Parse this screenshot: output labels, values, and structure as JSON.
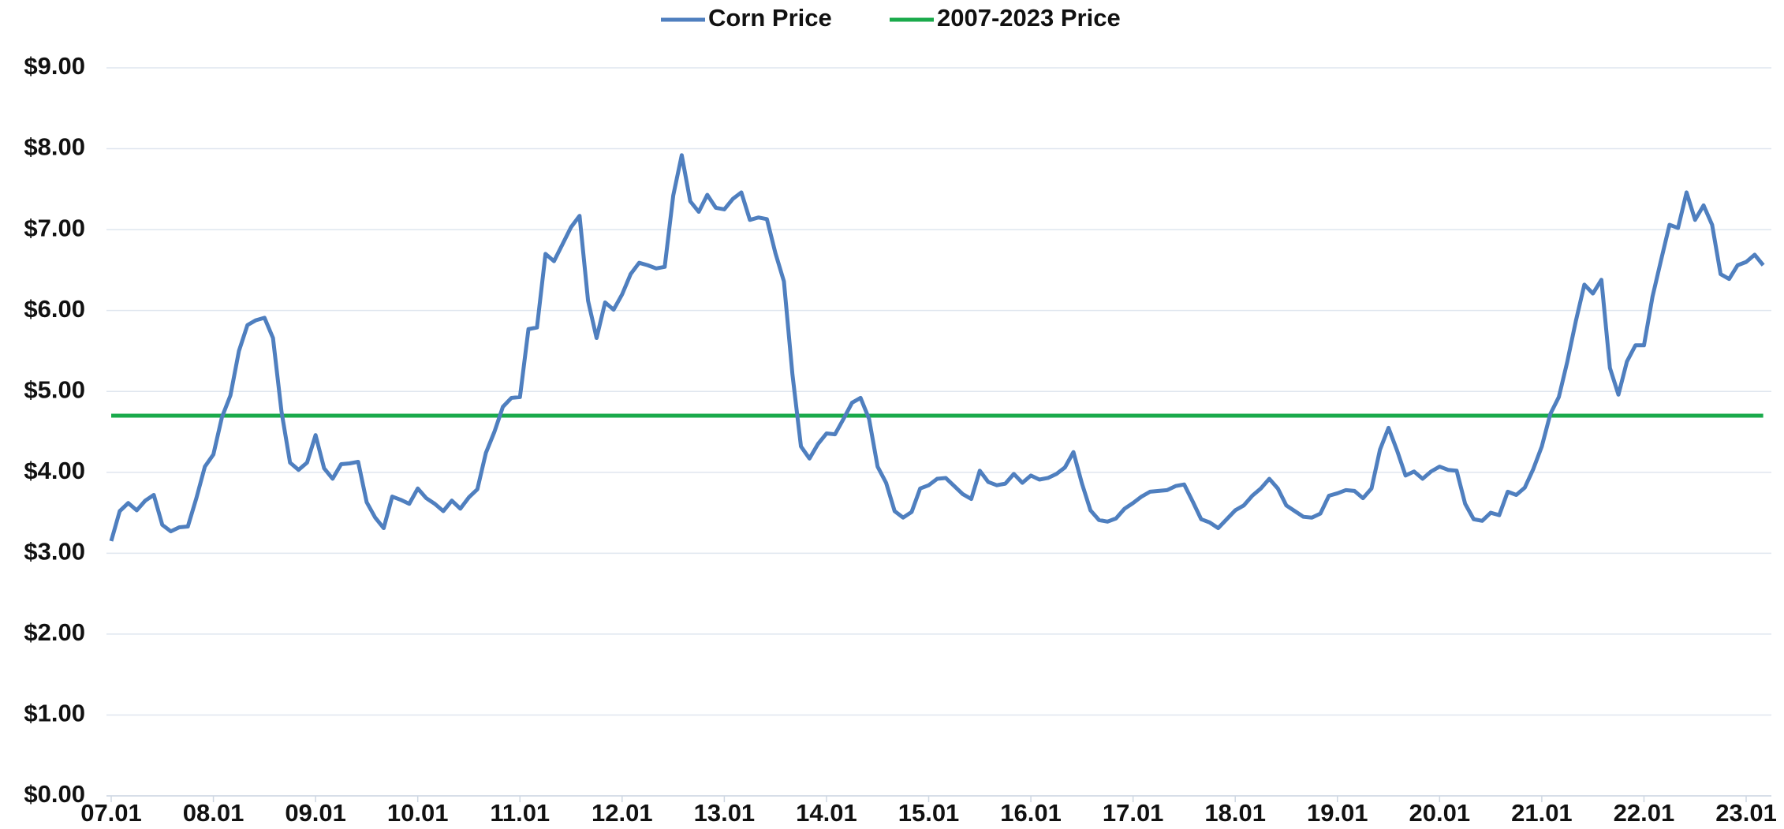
{
  "chart_data": {
    "type": "line",
    "categories": [
      "07.01",
      null,
      null,
      null,
      null,
      null,
      null,
      null,
      null,
      null,
      null,
      null,
      "08.01",
      null,
      null,
      null,
      null,
      null,
      null,
      null,
      null,
      null,
      null,
      null,
      "09.01",
      null,
      null,
      null,
      null,
      null,
      null,
      null,
      null,
      null,
      null,
      null,
      "10.01",
      null,
      null,
      null,
      null,
      null,
      null,
      null,
      null,
      null,
      null,
      null,
      "11.01",
      null,
      null,
      null,
      null,
      null,
      null,
      null,
      null,
      null,
      null,
      null,
      "12.01",
      null,
      null,
      null,
      null,
      null,
      null,
      null,
      null,
      null,
      null,
      null,
      "13.01",
      null,
      null,
      null,
      null,
      null,
      null,
      null,
      null,
      null,
      null,
      null,
      "14.01",
      null,
      null,
      null,
      null,
      null,
      null,
      null,
      null,
      null,
      null,
      null,
      "15.01",
      null,
      null,
      null,
      null,
      null,
      null,
      null,
      null,
      null,
      null,
      null,
      "16.01",
      null,
      null,
      null,
      null,
      null,
      null,
      null,
      null,
      null,
      null,
      null,
      "17.01",
      null,
      null,
      null,
      null,
      null,
      null,
      null,
      null,
      null,
      null,
      null,
      "18.01",
      null,
      null,
      null,
      null,
      null,
      null,
      null,
      null,
      null,
      null,
      null,
      "19.01",
      null,
      null,
      null,
      null,
      null,
      null,
      null,
      null,
      null,
      null,
      null,
      "20.01",
      null,
      null,
      null,
      null,
      null,
      null,
      null,
      null,
      null,
      null,
      null,
      "21.01",
      null,
      null,
      null,
      null,
      null,
      null,
      null,
      null,
      null,
      null,
      null,
      "22.01",
      null,
      null,
      null,
      null,
      null,
      null,
      null,
      null,
      null,
      null,
      null,
      "23.01",
      null,
      null
    ],
    "series": [
      {
        "name": "Corn Price",
        "color": "#4f7fbf",
        "values": [
          3.15,
          3.52,
          3.62,
          3.53,
          3.65,
          3.72,
          3.35,
          3.27,
          3.32,
          3.33,
          3.68,
          4.07,
          4.22,
          4.68,
          4.95,
          5.5,
          5.82,
          5.88,
          5.91,
          5.66,
          4.75,
          4.12,
          4.03,
          4.12,
          4.46,
          4.05,
          3.92,
          4.1,
          4.11,
          4.13,
          3.63,
          3.44,
          3.31,
          3.7,
          3.66,
          3.61,
          3.8,
          3.68,
          3.61,
          3.52,
          3.65,
          3.55,
          3.69,
          3.79,
          4.24,
          4.5,
          4.81,
          4.92,
          4.93,
          5.77,
          5.79,
          6.7,
          6.61,
          6.82,
          7.03,
          7.17,
          6.12,
          5.66,
          6.1,
          6.01,
          6.2,
          6.45,
          6.59,
          6.56,
          6.52,
          6.54,
          7.42,
          7.92,
          7.35,
          7.22,
          7.43,
          7.27,
          7.25,
          7.38,
          7.46,
          7.12,
          7.15,
          7.13,
          6.71,
          6.36,
          5.21,
          4.32,
          4.17,
          4.35,
          4.48,
          4.47,
          4.66,
          4.86,
          4.92,
          4.66,
          4.07,
          3.87,
          3.52,
          3.44,
          3.51,
          3.8,
          3.84,
          3.92,
          3.93,
          3.83,
          3.73,
          3.67,
          4.02,
          3.88,
          3.84,
          3.86,
          3.98,
          3.87,
          3.96,
          3.91,
          3.93,
          3.98,
          4.06,
          4.25,
          3.86,
          3.53,
          3.41,
          3.39,
          3.43,
          3.55,
          3.62,
          3.7,
          3.76,
          3.77,
          3.78,
          3.83,
          3.85,
          3.64,
          3.42,
          3.38,
          3.31,
          3.42,
          3.53,
          3.59,
          3.71,
          3.8,
          3.92,
          3.8,
          3.59,
          3.52,
          3.45,
          3.44,
          3.49,
          3.71,
          3.74,
          3.78,
          3.77,
          3.68,
          3.8,
          4.28,
          4.55,
          4.27,
          3.96,
          4.01,
          3.92,
          4.01,
          4.07,
          4.03,
          4.02,
          3.61,
          3.42,
          3.4,
          3.5,
          3.47,
          3.76,
          3.72,
          3.81,
          4.04,
          4.32,
          4.72,
          4.93,
          5.37,
          5.87,
          6.32,
          6.21,
          6.38,
          5.29,
          4.96,
          5.37,
          5.57,
          5.57,
          6.17,
          6.62,
          7.06,
          7.02,
          7.46,
          7.12,
          7.3,
          7.06,
          6.45,
          6.39,
          6.56,
          6.6,
          6.69,
          6.56
        ]
      }
    ],
    "hline": {
      "name": "2007-2023 Price",
      "color": "#1aaa4b",
      "value": 4.7
    },
    "ylim": [
      0,
      9
    ],
    "yticks": [
      {
        "value": 0,
        "label": "$0.00"
      },
      {
        "value": 1,
        "label": "$1.00"
      },
      {
        "value": 2,
        "label": "$2.00"
      },
      {
        "value": 3,
        "label": "$3.00"
      },
      {
        "value": 4,
        "label": "$4.00"
      },
      {
        "value": 5,
        "label": "$5.00"
      },
      {
        "value": 6,
        "label": "$6.00"
      },
      {
        "value": 7,
        "label": "$7.00"
      },
      {
        "value": 8,
        "label": "$8.00"
      },
      {
        "value": 9,
        "label": "$9.00"
      }
    ],
    "grid": true,
    "legend": "top"
  }
}
